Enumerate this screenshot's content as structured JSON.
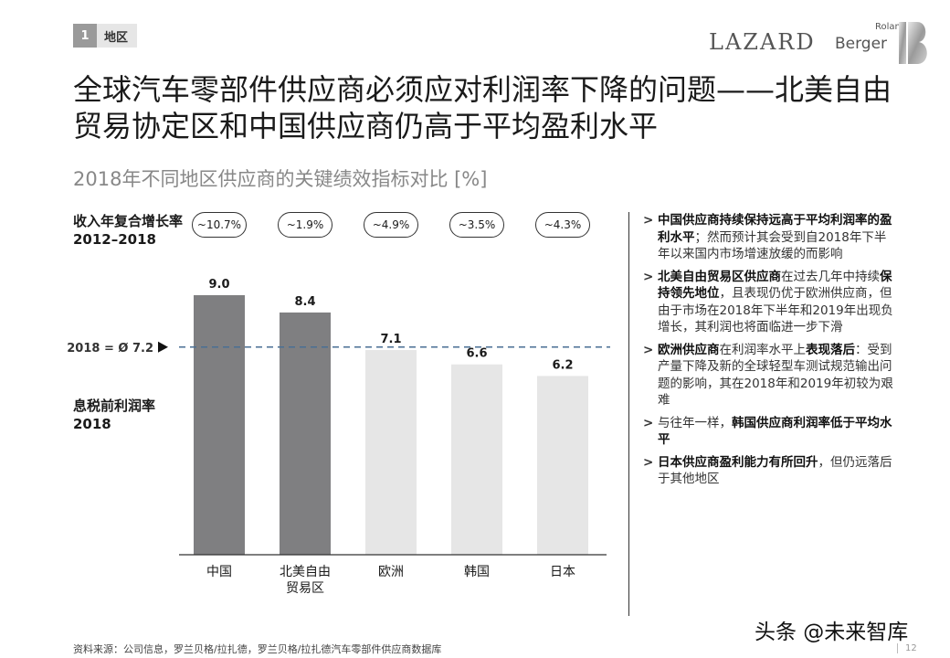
{
  "section": {
    "number": "1",
    "label": "地区"
  },
  "logos": {
    "lazard": "LAZARD",
    "roland": "Roland",
    "berger": "Berger"
  },
  "title": "全球汽车零部件供应商必须应对利润率下降的问题——北美自由贸易协定区和中国供应商仍高于平均盈利水平",
  "subtitle": "2018年不同地区供应商的关键绩效指标对比 [%]",
  "cagr_label": "收入年复合增长率\n2012–2018",
  "ebit_label": "息税前利润率\n2018",
  "cagr_values": [
    "~10.7%",
    "~1.9%",
    "~4.9%",
    "~3.5%",
    "~4.3%"
  ],
  "colors": {
    "bar_dark": "#7f7f81",
    "bar_light": "#e6e6e6",
    "avg_line": "#4a6f94"
  },
  "chart_data": {
    "type": "bar",
    "categories": [
      "中国",
      "北美自由\n贸易区",
      "欧洲",
      "韩国",
      "日本"
    ],
    "values": [
      9.0,
      8.4,
      7.1,
      6.6,
      6.2
    ],
    "value_labels": [
      "9.0",
      "8.4",
      "7.1",
      "6.6",
      "6.2"
    ],
    "highlighted": [
      true,
      true,
      false,
      false,
      false
    ],
    "average": 7.2,
    "average_label": "2018 = Ø 7.2",
    "ylim": [
      0,
      9.0
    ]
  },
  "bullets": [
    [
      {
        "t": "中国供应商持续保持远高于平均利润率的盈利水平",
        "b": true
      },
      {
        "t": "；然而预计其会受到自2018年下半年以来国内市场增速放缓的而影响",
        "b": false
      }
    ],
    [
      {
        "t": "北美自由贸易区供应商",
        "b": true
      },
      {
        "t": "在过去几年中持续",
        "b": false
      },
      {
        "t": "保持领先地位",
        "b": true
      },
      {
        "t": "，且表现仍优于欧洲供应商，但由于市场在2018年下半年和2019年出现负增长，其利润也将面临进一步下滑",
        "b": false
      }
    ],
    [
      {
        "t": "欧洲供应商",
        "b": true
      },
      {
        "t": "在利润率水平上",
        "b": false
      },
      {
        "t": "表现落后",
        "b": true
      },
      {
        "t": "：受到产量下降及新的全球轻型车测试规范输出问题的影响，其在2018年和2019年初较为艰难",
        "b": false
      }
    ],
    [
      {
        "t": "与往年一样，",
        "b": false
      },
      {
        "t": "韩国供应商利润率低于平均水平",
        "b": true
      }
    ],
    [
      {
        "t": "日本供应商盈利能力有所回升",
        "b": true
      },
      {
        "t": "，但仍远落后于其他地区",
        "b": false
      }
    ]
  ],
  "source": "资料来源：公司信息，罗兰贝格/拉扎德，罗兰贝格/拉扎德汽车零部件供应商数据库",
  "watermark": "头条 @未来智库",
  "page_number": "12"
}
